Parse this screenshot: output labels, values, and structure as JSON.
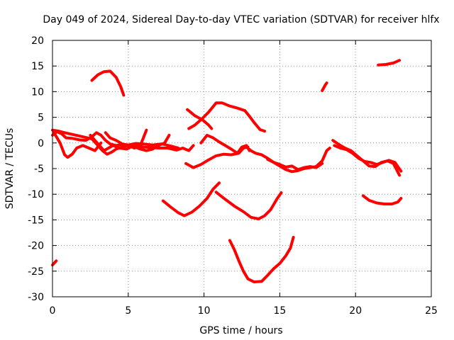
{
  "chart_data": {
    "type": "line",
    "title": "Day 049 of 2024, Sidereal Day-to-day VTEC variation (SDTVAR) for receiver hlfx",
    "xlabel": "GPS time / hours",
    "ylabel": "SDTVAR / TECUs",
    "xlim": [
      0,
      25
    ],
    "ylim": [
      -30,
      20
    ],
    "xticks": [
      0,
      5,
      10,
      15,
      20,
      25
    ],
    "yticks": [
      20,
      15,
      10,
      5,
      0,
      -5,
      -10,
      -15,
      -20,
      -25,
      -30
    ],
    "grid": true,
    "series_color": "#ff0000",
    "series": [
      {
        "name": "s1",
        "points": [
          [
            0.0,
            -23.8
          ],
          [
            0.25,
            -23.0
          ]
        ]
      },
      {
        "name": "s2",
        "points": [
          [
            0.0,
            1.5
          ],
          [
            0.3,
            2.2
          ],
          [
            0.6,
            1.8
          ],
          [
            0.9,
            1.0
          ],
          [
            1.3,
            0.9
          ],
          [
            1.8,
            0.6
          ],
          [
            2.2,
            0.5
          ],
          [
            2.6,
            1.2
          ],
          [
            2.9,
            2.0
          ],
          [
            3.2,
            1.5
          ],
          [
            3.5,
            0.5
          ],
          [
            3.8,
            -0.2
          ],
          [
            4.2,
            -0.5
          ],
          [
            4.6,
            -0.3
          ],
          [
            5.0,
            -0.6
          ],
          [
            5.5,
            -0.5
          ],
          [
            6.0,
            -0.8
          ],
          [
            6.6,
            -0.9
          ],
          [
            7.0,
            -1.0
          ],
          [
            7.6,
            -1.0
          ],
          [
            8.2,
            -1.4
          ],
          [
            8.6,
            -1.0
          ],
          [
            9.0,
            -1.5
          ],
          [
            9.3,
            -0.5
          ]
        ]
      },
      {
        "name": "s3",
        "points": [
          [
            0.1,
            2.0
          ],
          [
            0.5,
            0.0
          ],
          [
            0.8,
            -2.3
          ],
          [
            1.0,
            -2.8
          ],
          [
            1.3,
            -2.2
          ],
          [
            1.6,
            -1.0
          ],
          [
            2.0,
            -0.5
          ],
          [
            2.4,
            -1.0
          ],
          [
            2.8,
            -1.5
          ],
          [
            3.2,
            0.0
          ]
        ]
      },
      {
        "name": "s4",
        "points": [
          [
            0.0,
            2.5
          ],
          [
            0.4,
            2.3
          ],
          [
            0.8,
            2.0
          ],
          [
            1.4,
            1.6
          ],
          [
            2.0,
            1.2
          ],
          [
            2.6,
            0.8
          ],
          [
            3.0,
            -0.5
          ],
          [
            3.3,
            -1.5
          ],
          [
            3.6,
            -2.2
          ],
          [
            3.9,
            -1.8
          ],
          [
            4.2,
            -1.2
          ],
          [
            4.6,
            -0.8
          ],
          [
            5.0,
            -0.5
          ],
          [
            5.4,
            -1.0
          ],
          [
            5.8,
            -0.5
          ],
          [
            6.2,
            2.5
          ]
        ]
      },
      {
        "name": "s5",
        "points": [
          [
            2.5,
            1.5
          ],
          [
            2.8,
            0.5
          ],
          [
            3.1,
            -0.5
          ],
          [
            3.4,
            -1.5
          ],
          [
            3.7,
            -1.0
          ],
          [
            4.0,
            -0.5
          ],
          [
            4.4,
            -1.0
          ],
          [
            4.9,
            -1.2
          ],
          [
            5.3,
            -0.6
          ],
          [
            5.8,
            -1.2
          ],
          [
            6.2,
            -1.5
          ],
          [
            6.6,
            -1.2
          ],
          [
            7.0,
            -0.5
          ],
          [
            7.4,
            0.0
          ],
          [
            7.7,
            1.5
          ]
        ]
      },
      {
        "name": "s6",
        "points": [
          [
            3.5,
            2.0
          ],
          [
            3.8,
            1.0
          ],
          [
            4.2,
            0.5
          ],
          [
            4.6,
            -0.2
          ],
          [
            5.0,
            -0.4
          ],
          [
            5.5,
            -0.1
          ],
          [
            6.0,
            -0.2
          ],
          [
            6.6,
            -0.4
          ],
          [
            7.2,
            -0.2
          ],
          [
            7.8,
            -0.6
          ],
          [
            8.3,
            -1.0
          ]
        ]
      },
      {
        "name": "s7",
        "points": [
          [
            2.6,
            12.2
          ],
          [
            3.0,
            13.3
          ],
          [
            3.4,
            13.9
          ],
          [
            3.8,
            14.0
          ],
          [
            4.2,
            12.8
          ],
          [
            4.5,
            11.0
          ],
          [
            4.7,
            9.3
          ]
        ]
      },
      {
        "name": "s8",
        "points": [
          [
            8.8,
            -4.0
          ],
          [
            9.3,
            -4.8
          ],
          [
            9.8,
            -4.2
          ],
          [
            10.3,
            -3.3
          ],
          [
            10.8,
            -2.5
          ],
          [
            11.3,
            -2.2
          ],
          [
            11.8,
            -2.3
          ],
          [
            12.3,
            -2.0
          ],
          [
            12.6,
            -1.0
          ],
          [
            12.9,
            -0.8
          ]
        ]
      },
      {
        "name": "s9",
        "points": [
          [
            9.8,
            0.0
          ],
          [
            10.2,
            1.5
          ],
          [
            10.6,
            1.0
          ],
          [
            11.0,
            0.2
          ],
          [
            11.4,
            -0.5
          ],
          [
            11.8,
            -1.2
          ],
          [
            12.2,
            -2.0
          ],
          [
            12.5,
            -0.8
          ],
          [
            12.8,
            -0.5
          ],
          [
            13.0,
            -1.5
          ]
        ]
      },
      {
        "name": "s10",
        "points": [
          [
            9.0,
            2.8
          ],
          [
            9.4,
            3.5
          ],
          [
            9.9,
            4.8
          ],
          [
            10.3,
            6.0
          ],
          [
            10.8,
            7.8
          ],
          [
            11.2,
            7.8
          ],
          [
            11.7,
            7.2
          ],
          [
            12.2,
            6.8
          ],
          [
            12.7,
            6.3
          ],
          [
            13.0,
            5.2
          ],
          [
            13.3,
            4.0
          ],
          [
            13.7,
            2.6
          ],
          [
            14.0,
            2.3
          ]
        ]
      },
      {
        "name": "s11",
        "points": [
          [
            8.9,
            6.5
          ],
          [
            9.4,
            5.3
          ],
          [
            9.9,
            4.5
          ],
          [
            10.3,
            3.5
          ],
          [
            10.5,
            2.8
          ]
        ]
      },
      {
        "name": "s12",
        "points": [
          [
            7.3,
            -11.3
          ],
          [
            7.8,
            -12.5
          ],
          [
            8.3,
            -13.6
          ],
          [
            8.7,
            -14.2
          ],
          [
            9.2,
            -13.5
          ],
          [
            9.7,
            -12.3
          ],
          [
            10.2,
            -10.8
          ],
          [
            10.6,
            -9.0
          ],
          [
            11.0,
            -7.8
          ]
        ]
      },
      {
        "name": "s13",
        "points": [
          [
            10.8,
            -9.6
          ],
          [
            11.4,
            -11.0
          ],
          [
            12.0,
            -12.3
          ],
          [
            12.6,
            -13.4
          ],
          [
            13.1,
            -14.5
          ],
          [
            13.6,
            -14.8
          ],
          [
            14.0,
            -14.2
          ],
          [
            14.4,
            -13.0
          ],
          [
            14.8,
            -11.0
          ],
          [
            15.1,
            -9.7
          ]
        ]
      },
      {
        "name": "s14",
        "points": [
          [
            11.7,
            -19.0
          ],
          [
            12.0,
            -20.8
          ],
          [
            12.3,
            -23.0
          ],
          [
            12.6,
            -25.0
          ],
          [
            12.9,
            -26.5
          ],
          [
            13.3,
            -27.1
          ],
          [
            13.8,
            -27.0
          ],
          [
            14.2,
            -25.8
          ],
          [
            14.6,
            -24.5
          ],
          [
            15.0,
            -23.5
          ],
          [
            15.4,
            -22.0
          ],
          [
            15.7,
            -20.5
          ],
          [
            15.9,
            -18.4
          ]
        ]
      },
      {
        "name": "s15",
        "points": [
          [
            12.8,
            -0.8
          ],
          [
            13.1,
            -1.5
          ],
          [
            13.4,
            -2.0
          ],
          [
            13.8,
            -2.3
          ],
          [
            14.2,
            -3.0
          ],
          [
            14.6,
            -3.8
          ],
          [
            15.0,
            -4.5
          ],
          [
            15.4,
            -5.2
          ],
          [
            15.8,
            -5.6
          ],
          [
            16.2,
            -5.4
          ],
          [
            16.6,
            -5.0
          ],
          [
            17.0,
            -4.8
          ],
          [
            17.4,
            -4.6
          ],
          [
            17.8,
            -3.5
          ],
          [
            18.1,
            -1.5
          ],
          [
            18.3,
            -1.0
          ]
        ]
      },
      {
        "name": "s16",
        "points": [
          [
            14.2,
            -3.2
          ],
          [
            14.6,
            -3.8
          ],
          [
            15.0,
            -4.2
          ],
          [
            15.4,
            -4.7
          ],
          [
            15.8,
            -4.5
          ],
          [
            16.2,
            -5.2
          ],
          [
            16.6,
            -4.8
          ],
          [
            17.0,
            -4.6
          ],
          [
            17.4,
            -4.8
          ],
          [
            17.8,
            -4.0
          ]
        ]
      },
      {
        "name": "s17",
        "points": [
          [
            17.8,
            10.2
          ],
          [
            18.0,
            11.3
          ],
          [
            18.1,
            11.7
          ]
        ]
      },
      {
        "name": "s18",
        "points": [
          [
            18.6,
            -0.5
          ],
          [
            19.0,
            -1.0
          ],
          [
            19.4,
            -1.3
          ],
          [
            19.8,
            -2.0
          ],
          [
            20.2,
            -3.0
          ],
          [
            20.6,
            -3.6
          ],
          [
            21.0,
            -3.8
          ],
          [
            21.4,
            -4.2
          ],
          [
            21.8,
            -3.8
          ],
          [
            22.2,
            -3.4
          ],
          [
            22.6,
            -3.8
          ],
          [
            23.0,
            -5.5
          ]
        ]
      },
      {
        "name": "s19",
        "points": [
          [
            18.5,
            0.5
          ],
          [
            18.9,
            -0.3
          ],
          [
            19.3,
            -1.0
          ],
          [
            19.7,
            -1.5
          ],
          [
            20.1,
            -2.5
          ],
          [
            20.5,
            -3.5
          ],
          [
            20.9,
            -4.5
          ],
          [
            21.3,
            -4.6
          ],
          [
            21.7,
            -3.8
          ],
          [
            22.1,
            -3.5
          ],
          [
            22.5,
            -4.0
          ],
          [
            22.9,
            -6.3
          ]
        ]
      },
      {
        "name": "s20",
        "points": [
          [
            20.5,
            -10.3
          ],
          [
            20.9,
            -11.2
          ],
          [
            21.4,
            -11.7
          ],
          [
            21.9,
            -11.9
          ],
          [
            22.4,
            -11.9
          ],
          [
            22.8,
            -11.5
          ],
          [
            23.0,
            -10.8
          ]
        ]
      },
      {
        "name": "s21",
        "points": [
          [
            21.5,
            15.2
          ],
          [
            22.0,
            15.3
          ],
          [
            22.5,
            15.6
          ],
          [
            22.9,
            16.1
          ]
        ]
      }
    ]
  }
}
